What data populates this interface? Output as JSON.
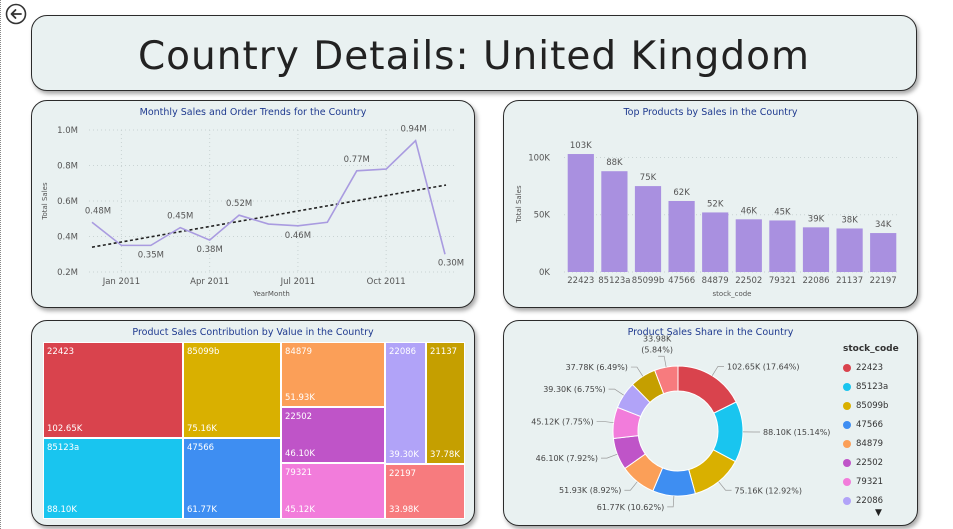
{
  "page": {
    "title": "Country Details: United Kingdom"
  },
  "nav": {
    "back_icon": "back-arrow-icon"
  },
  "chart_data": [
    {
      "id": "line",
      "type": "line",
      "title": "Monthly Sales and Order Trends for the Country",
      "xlabel": "YearMonth",
      "ylabel": "Total Sales",
      "x": [
        "2010-12",
        "2011-01",
        "2011-02",
        "2011-03",
        "2011-04",
        "2011-05",
        "2011-06",
        "2011-07",
        "2011-08",
        "2011-09",
        "2011-10",
        "2011-11",
        "2011-12"
      ],
      "values": [
        0.48,
        0.35,
        0.35,
        0.45,
        0.38,
        0.52,
        0.47,
        0.46,
        0.48,
        0.77,
        0.78,
        0.94,
        0.3
      ],
      "data_labels": [
        "0.48M",
        "",
        "0.35M",
        "0.45M",
        "0.38M",
        "0.52M",
        "",
        "0.46M",
        "",
        "0.77M",
        "",
        "0.94M",
        "0.30M"
      ],
      "trend": [
        0.34,
        0.69
      ],
      "xticks": [
        {
          "x": "2011-01",
          "label": "Jan 2011"
        },
        {
          "x": "2011-04",
          "label": "Apr 2011"
        },
        {
          "x": "2011-07",
          "label": "Jul 2011"
        },
        {
          "x": "2011-10",
          "label": "Oct 2011"
        }
      ],
      "ylim": [
        0.2,
        1.0
      ],
      "yticks": [
        1.0,
        0.8,
        0.6,
        0.4,
        0.2
      ],
      "ytick_labels": [
        "1.0M",
        "0.8M",
        "0.6M",
        "0.4M",
        "0.2M"
      ],
      "grid": true,
      "color": "#a99be0"
    },
    {
      "id": "bar",
      "type": "bar",
      "title": "Top Products by Sales in the Country",
      "xlabel": "stock_code",
      "ylabel": "Total Sales",
      "categories": [
        "22423",
        "85123a",
        "85099b",
        "47566",
        "84879",
        "22502",
        "79321",
        "22086",
        "21137",
        "22197"
      ],
      "values": [
        103,
        88,
        75,
        62,
        52,
        46,
        45,
        39,
        38,
        34
      ],
      "data_labels": [
        "103K",
        "88K",
        "75K",
        "62K",
        "52K",
        "46K",
        "45K",
        "39K",
        "38K",
        "34K"
      ],
      "ylim": [
        0,
        110
      ],
      "yticks": [
        100,
        50,
        0
      ],
      "ytick_labels": [
        "100K",
        "50K",
        "0K"
      ],
      "grid": true,
      "color": "#a990e0"
    },
    {
      "id": "treemap",
      "type": "treemap",
      "title": "Product Sales Contribution by Value in the Country",
      "items": [
        {
          "name": "22423",
          "value_label": "102.65K",
          "color": "#d9434d"
        },
        {
          "name": "85123a",
          "value_label": "88.10K",
          "color": "#19c5ef"
        },
        {
          "name": "85099b",
          "value_label": "75.16K",
          "color": "#d9b000"
        },
        {
          "name": "47566",
          "value_label": "61.77K",
          "color": "#3e8ef2"
        },
        {
          "name": "84879",
          "value_label": "51.93K",
          "color": "#fb9f58"
        },
        {
          "name": "22502",
          "value_label": "46.10K",
          "color": "#bf54c8"
        },
        {
          "name": "79321",
          "value_label": "45.12K",
          "color": "#f27cdb"
        },
        {
          "name": "22086",
          "value_label": "39.30K",
          "color": "#b1a3f8"
        },
        {
          "name": "21137",
          "value_label": "37.78K",
          "color": "#c59f00"
        },
        {
          "name": "22197",
          "value_label": "33.98K",
          "color": "#f77b7e"
        }
      ]
    },
    {
      "id": "donut",
      "type": "pie",
      "title": "Product Sales Share in the Country",
      "legend_title": "stock_code",
      "legend_more": "▼",
      "slices": [
        {
          "name": "22423",
          "value": 102.65,
          "label": "102.65K (17.64%)",
          "color": "#d9434d"
        },
        {
          "name": "85123a",
          "value": 88.1,
          "label": "88.10K (15.14%)",
          "color": "#19c5ef"
        },
        {
          "name": "85099b",
          "value": 75.16,
          "label": "75.16K (12.92%)",
          "color": "#d9b000"
        },
        {
          "name": "47566",
          "value": 61.77,
          "label": "61.77K (10.62%)",
          "color": "#3e8ef2"
        },
        {
          "name": "84879",
          "value": 51.93,
          "label": "51.93K (8.92%)",
          "color": "#fb9f58"
        },
        {
          "name": "22502",
          "value": 46.1,
          "label": "46.10K (7.92%)",
          "color": "#bf54c8"
        },
        {
          "name": "79321",
          "value": 45.12,
          "label": "45.12K (7.75%)",
          "color": "#f27cdb"
        },
        {
          "name": "22086",
          "value": 39.3,
          "label": "39.30K (6.75%)",
          "color": "#b1a3f8"
        },
        {
          "name": "21137",
          "value": 37.78,
          "label": "37.78K (6.49%)",
          "color": "#c59f00"
        },
        {
          "name": "22197",
          "value": 33.98,
          "label": "33.98K (5.84%)",
          "color": "#f77b7e"
        }
      ],
      "legend_items": [
        "22423",
        "85123a",
        "85099b",
        "47566",
        "84879",
        "22502",
        "79321",
        "22086"
      ]
    }
  ]
}
